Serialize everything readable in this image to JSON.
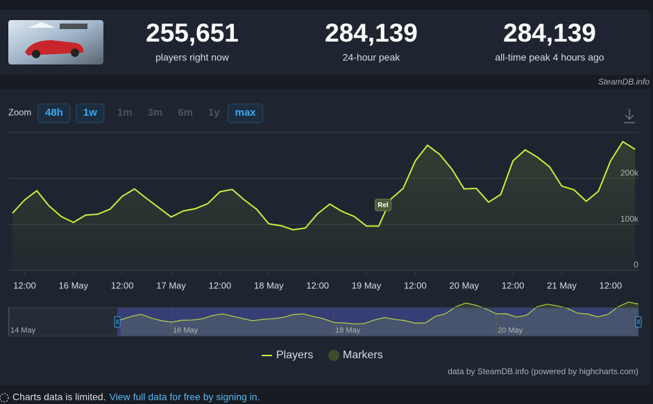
{
  "header": {
    "stats": [
      {
        "value": "255,651",
        "label": "players right now"
      },
      {
        "value": "284,139",
        "label": "24-hour peak"
      },
      {
        "value": "284,139",
        "label": "all-time peak 4 hours ago"
      }
    ],
    "source": "SteamDB.info"
  },
  "zoom": {
    "label": "Zoom",
    "options": [
      {
        "label": "48h",
        "state": "available"
      },
      {
        "label": "1w",
        "state": "available"
      },
      {
        "label": "1m",
        "state": "disabled"
      },
      {
        "label": "3m",
        "state": "disabled"
      },
      {
        "label": "6m",
        "state": "disabled"
      },
      {
        "label": "1y",
        "state": "disabled"
      },
      {
        "label": "max",
        "state": "available"
      }
    ]
  },
  "chart_data": {
    "type": "line",
    "x": [
      "15 May 09:00",
      "15 May 12:00",
      "15 May 15:00",
      "15 May 18:00",
      "15 May 21:00",
      "16 May 00:00",
      "16 May 03:00",
      "16 May 06:00",
      "16 May 09:00",
      "16 May 12:00",
      "16 May 15:00",
      "16 May 18:00",
      "16 May 21:00",
      "17 May 00:00",
      "17 May 03:00",
      "17 May 06:00",
      "17 May 09:00",
      "17 May 12:00",
      "17 May 15:00",
      "17 May 18:00",
      "17 May 21:00",
      "18 May 00:00",
      "18 May 03:00",
      "18 May 06:00",
      "18 May 09:00",
      "18 May 12:00",
      "18 May 15:00",
      "18 May 18:00",
      "18 May 21:00",
      "19 May 00:00",
      "19 May 03:00",
      "19 May 06:00",
      "19 May 09:00",
      "19 May 12:00",
      "19 May 15:00",
      "19 May 18:00",
      "19 May 21:00",
      "20 May 00:00",
      "20 May 03:00",
      "20 May 06:00",
      "20 May 09:00",
      "20 May 12:00",
      "20 May 15:00",
      "20 May 18:00",
      "20 May 21:00",
      "21 May 00:00",
      "21 May 03:00",
      "21 May 06:00",
      "21 May 09:00",
      "21 May 12:00",
      "21 May 15:00",
      "21 May 18:00"
    ],
    "series": [
      {
        "name": "Players",
        "color": "#c6f03a",
        "values": [
          124000,
          153000,
          173000,
          140000,
          117000,
          104000,
          120000,
          122000,
          133000,
          161000,
          177000,
          156000,
          136000,
          116000,
          129000,
          134000,
          145000,
          171000,
          176000,
          153000,
          133000,
          101000,
          97000,
          88000,
          92000,
          123000,
          144000,
          128000,
          117000,
          96000,
          96000,
          155000,
          178000,
          238000,
          272000,
          252000,
          220000,
          177000,
          178000,
          148000,
          165000,
          238000,
          262000,
          246000,
          225000,
          183000,
          175000,
          150000,
          172000,
          238000,
          280000,
          263000
        ]
      }
    ],
    "xlim": [
      "15 May 08:00",
      "21 May 19:00"
    ],
    "xticks": [
      {
        "value": "15 May 12:00",
        "label": "12:00"
      },
      {
        "value": "16 May 00:00",
        "label": "16 May"
      },
      {
        "value": "16 May 12:00",
        "label": "12:00"
      },
      {
        "value": "17 May 00:00",
        "label": "17 May"
      },
      {
        "value": "17 May 12:00",
        "label": "12:00"
      },
      {
        "value": "18 May 00:00",
        "label": "18 May"
      },
      {
        "value": "18 May 12:00",
        "label": "12:00"
      },
      {
        "value": "19 May 00:00",
        "label": "19 May"
      },
      {
        "value": "19 May 12:00",
        "label": "12:00"
      },
      {
        "value": "20 May 00:00",
        "label": "20 May"
      },
      {
        "value": "20 May 12:00",
        "label": "12:00"
      },
      {
        "value": "21 May 00:00",
        "label": "21 May"
      },
      {
        "value": "21 May 12:00",
        "label": "12:00"
      }
    ],
    "ylim": [
      0,
      300000
    ],
    "yticks": [
      0,
      {
        "value": 100000,
        "label": "100k"
      },
      {
        "value": 200000,
        "label": "200k"
      }
    ],
    "grid": true,
    "markers": {
      "name": "Markers",
      "color": "#3f4c2c",
      "items": [
        {
          "x": "19 May 04:00",
          "label": "Rel"
        }
      ]
    },
    "navigator": {
      "xlim": [
        "14 May 00:00",
        "21 May 18:00"
      ],
      "xticks": [
        {
          "value": "14 May 00:00",
          "label": "14 May"
        },
        {
          "value": "16 May 00:00",
          "label": "16 May"
        },
        {
          "value": "18 May 00:00",
          "label": "18 May"
        },
        {
          "value": "20 May 00:00",
          "label": "20 May"
        }
      ]
    }
  },
  "credits": "data by SteamDB.info (powered by highcharts.com)",
  "footer": {
    "notice": "Charts data is limited.",
    "link": "View full data for free by signing in."
  }
}
